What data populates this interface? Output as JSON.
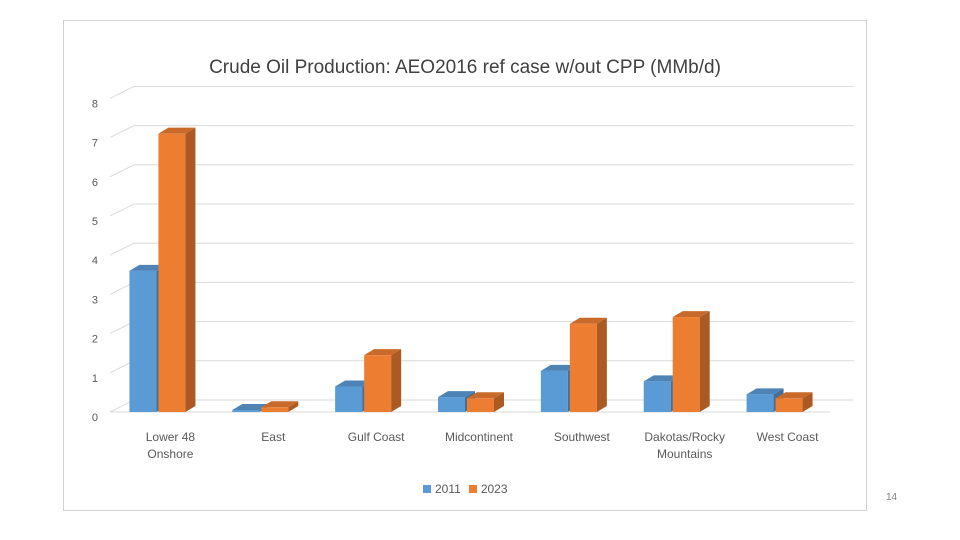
{
  "colors": {
    "s2011": "#5b9bd5",
    "s2023": "#ed7d31"
  },
  "page_number": "14",
  "chart_data": {
    "type": "bar",
    "title": "Crude Oil Production: AEO2016 ref case w/out CPP (MMb/d)",
    "xlabel": "",
    "ylabel": "",
    "ylim": [
      0,
      8
    ],
    "yticks": [
      "0",
      "1",
      "2",
      "3",
      "4",
      "5",
      "6",
      "7",
      "8"
    ],
    "categories": [
      [
        "Lower 48",
        "Onshore"
      ],
      [
        "East"
      ],
      [
        "Gulf Coast"
      ],
      [
        "Midcontinent"
      ],
      [
        "Southwest"
      ],
      [
        "Dakotas/Rocky",
        "Mountains"
      ],
      [
        "West Coast"
      ]
    ],
    "series": [
      {
        "name": "2011",
        "values": [
          3.6,
          0.05,
          0.65,
          0.38,
          1.05,
          0.78,
          0.45
        ]
      },
      {
        "name": "2023",
        "values": [
          7.1,
          0.12,
          1.45,
          0.35,
          2.25,
          2.42,
          0.35
        ]
      }
    ],
    "legend": "bottom"
  }
}
